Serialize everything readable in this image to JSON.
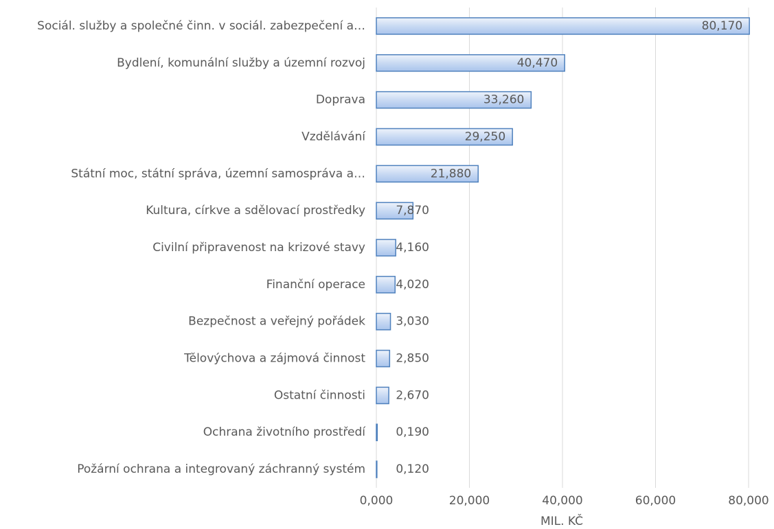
{
  "chart_data": {
    "type": "hbar",
    "categories": [
      "Sociál. služby a společné činn. v sociál. zabezpečení a…",
      "Bydlení, komunální služby a územní rozvoj",
      "Doprava",
      "Vzdělávání",
      "Státní moc, státní správa, územní samospráva a…",
      "Kultura, církve a sdělovací prostředky",
      "Civilní připravenost na krizové stavy",
      "Finanční operace",
      "Bezpečnost a veřejný pořádek",
      "Tělovýchova a zájmová činnost",
      "Ostatní činnosti",
      "Ochrana životního prostředí",
      "Požární ochrana a integrovaný záchranný systém"
    ],
    "values": [
      80.17,
      40.47,
      33.26,
      29.25,
      21.88,
      7.87,
      4.16,
      4.02,
      3.03,
      2.85,
      2.67,
      0.19,
      0.12
    ],
    "value_labels": [
      "80,170",
      "40,470",
      "33,260",
      "29,250",
      "21,880",
      "7,870",
      "4,160",
      "4,020",
      "3,030",
      "2,850",
      "2,670",
      "0,190",
      "0,120"
    ],
    "color": "#4f81bd",
    "xlabel": "MIL. KČ",
    "xlim": [
      0,
      80
    ],
    "xticks": [
      {
        "value": 0,
        "label": "0,000"
      },
      {
        "value": 20,
        "label": "20,000"
      },
      {
        "value": 40,
        "label": "40,000"
      },
      {
        "value": 60,
        "label": "60,000"
      },
      {
        "value": 80,
        "label": "80,000"
      }
    ],
    "grid": true
  }
}
